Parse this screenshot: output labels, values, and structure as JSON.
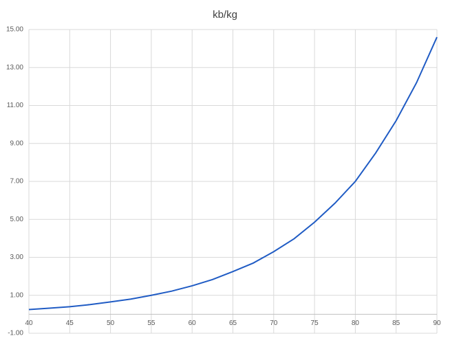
{
  "chart_data": {
    "type": "line",
    "title": "kb/kg",
    "x": [
      40,
      42.5,
      45,
      47.5,
      50,
      52.5,
      55,
      57.5,
      60,
      62.5,
      65,
      67.5,
      70,
      72.5,
      75,
      77.5,
      80,
      82.5,
      85,
      87.5,
      90
    ],
    "series": [
      {
        "name": "kb/kg",
        "color": "#1f5bc4",
        "values": [
          0.25,
          0.32,
          0.4,
          0.51,
          0.65,
          0.8,
          1.0,
          1.22,
          1.5,
          1.83,
          2.25,
          2.7,
          3.3,
          3.98,
          4.85,
          5.85,
          7.0,
          8.5,
          10.2,
          12.2,
          14.6
        ]
      }
    ],
    "xlim": [
      40,
      90
    ],
    "xticks": [
      40,
      45,
      50,
      55,
      60,
      65,
      70,
      75,
      80,
      85,
      90
    ],
    "ylim": [
      -1,
      15
    ],
    "yticks": [
      {
        "value": -1,
        "label": "-1.00"
      },
      {
        "value": 1,
        "label": "1.00"
      },
      {
        "value": 3,
        "label": "3.00"
      },
      {
        "value": 5,
        "label": "5.00"
      },
      {
        "value": 7,
        "label": "7.00"
      },
      {
        "value": 9,
        "label": "9.00"
      },
      {
        "value": 11,
        "label": "11.00"
      },
      {
        "value": 13,
        "label": "13.00"
      },
      {
        "value": 15,
        "label": "15.00"
      }
    ],
    "grid": true
  }
}
